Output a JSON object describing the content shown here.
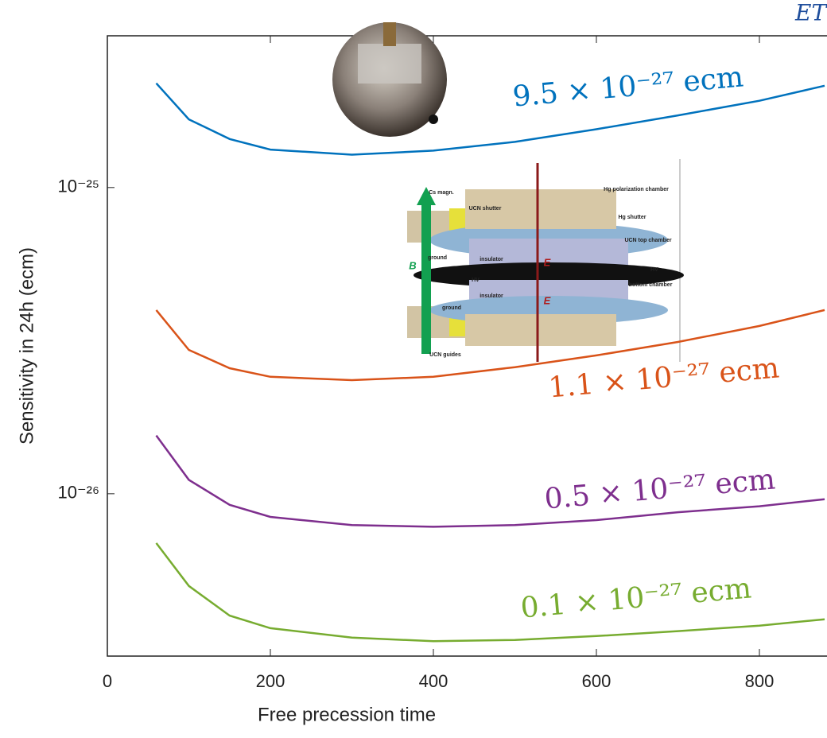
{
  "chart_data": {
    "type": "line",
    "xlabel": "Free precession time",
    "ylabel": "Sensitivity in 24h (ecm)",
    "corner_text": "ET",
    "x": [
      60,
      100,
      150,
      200,
      300,
      400,
      500,
      600,
      700,
      800,
      880
    ],
    "series": [
      {
        "name": "9.5 × 10⁻²⁷ ecm",
        "color": "#0072bd",
        "values": [
          2.19e-25,
          1.67e-25,
          1.44e-25,
          1.33e-25,
          1.28e-25,
          1.32e-25,
          1.41e-25,
          1.55e-25,
          1.72e-25,
          1.92e-25,
          2.15e-25
        ]
      },
      {
        "name": "1.1 × 10⁻²⁷ ecm",
        "color": "#d95319",
        "values": [
          3.98e-26,
          2.95e-26,
          2.57e-26,
          2.41e-26,
          2.35e-26,
          2.41e-26,
          2.59e-26,
          2.83e-26,
          3.13e-26,
          3.53e-26,
          3.98e-26
        ]
      },
      {
        "name": "0.5 × 10⁻²⁷ ecm",
        "color": "#7e2f8e",
        "values": [
          1.55e-26,
          1.11e-26,
          9.2e-27,
          8.4e-27,
          7.9e-27,
          7.8e-27,
          7.9e-27,
          8.2e-27,
          8.7e-27,
          9.1e-27,
          9.6e-27
        ]
      },
      {
        "name": "0.1 × 10⁻²⁷ ecm",
        "color": "#77ac30",
        "values": [
          6.9e-27,
          5e-27,
          4e-27,
          3.64e-27,
          3.39e-27,
          3.3e-27,
          3.33e-27,
          3.43e-27,
          3.56e-27,
          3.71e-27,
          3.89e-27
        ]
      }
    ],
    "xlim": [
      0,
      883
    ],
    "xticks": [
      0,
      200,
      400,
      600,
      800
    ],
    "ylim": [
      2.95e-27,
      3.13e-25
    ],
    "ylog": true,
    "yticks": [
      {
        "value": 1e-26,
        "label": "10⁻²⁶"
      },
      {
        "value": 1e-25,
        "label": "10⁻²⁵"
      }
    ]
  },
  "inset": {
    "labels": [
      "Cs magn.",
      "UCN shutter",
      "Hg polarization chamber",
      "Hg shutter",
      "UCN top chamber",
      "insulator",
      "HV",
      "HV",
      "bottom chamber",
      "insulator",
      "ground",
      "ground",
      "UCN guides",
      "B",
      "E",
      "E"
    ]
  }
}
